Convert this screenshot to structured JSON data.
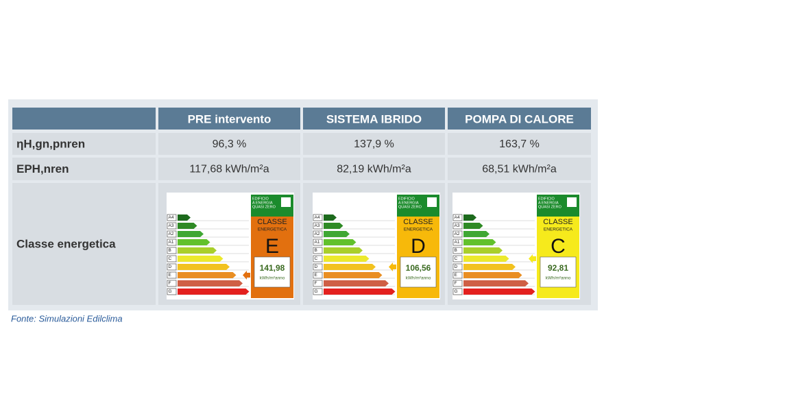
{
  "table": {
    "header": [
      "PRE intervento",
      "SISTEMA IBRIDO",
      "POMPA DI CALORE"
    ],
    "rows": [
      [
        "ηH,gn,pnren",
        "96,3 %",
        "137,9 %",
        "163,7 %"
      ],
      [
        "EPH,nren",
        "117,68 kWh/m²a",
        "82,19 kWh/m²a",
        "68,51 kWh/m²a"
      ],
      [
        "Classe energetica"
      ]
    ]
  },
  "energy_scale": {
    "classes": [
      "A4",
      "A3",
      "A2",
      "A1",
      "B",
      "C",
      "D",
      "E",
      "F",
      "G"
    ],
    "class_colors": [
      "#1d6a1d",
      "#2f8a25",
      "#3fa733",
      "#62c12c",
      "#a9cf2b",
      "#ece92c",
      "#f2c21f",
      "#e98e22",
      "#cf5f45",
      "#e3211f"
    ],
    "nzeb_text": [
      "EDIFICIO",
      "A ENERGIA",
      "QUASI ZERO"
    ],
    "classe": "CLASSE",
    "energetica": "ENERGETICA",
    "unit": "kWh/m²anno"
  },
  "labels": [
    {
      "grade": "E",
      "value": "141,98",
      "color": "#e2700f"
    },
    {
      "grade": "D",
      "value": "106,56",
      "color": "#f7b90a"
    },
    {
      "grade": "C",
      "value": "92,81",
      "color": "#f6ea1c"
    }
  ],
  "source": "Fonte: Simulazioni Edilclima"
}
